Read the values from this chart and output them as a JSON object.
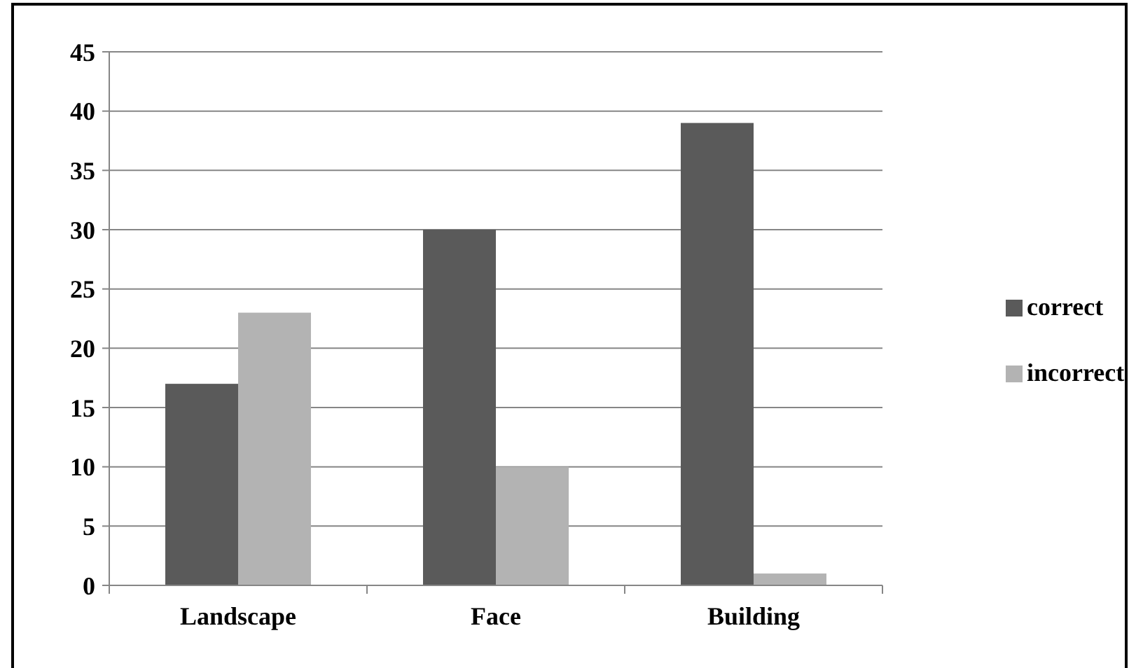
{
  "chart_data": {
    "type": "bar",
    "categories": [
      "Landscape",
      "Face",
      "Building"
    ],
    "series": [
      {
        "name": "correct",
        "color": "#5a5a5a",
        "values": [
          17,
          30,
          39
        ]
      },
      {
        "name": "incorrect",
        "color": "#b3b3b3",
        "values": [
          23,
          10,
          1
        ]
      }
    ],
    "ylim": [
      0,
      45
    ],
    "yticks": [
      0,
      5,
      10,
      15,
      20,
      25,
      30,
      35,
      40,
      45
    ],
    "grid": "y",
    "legend": "right"
  }
}
